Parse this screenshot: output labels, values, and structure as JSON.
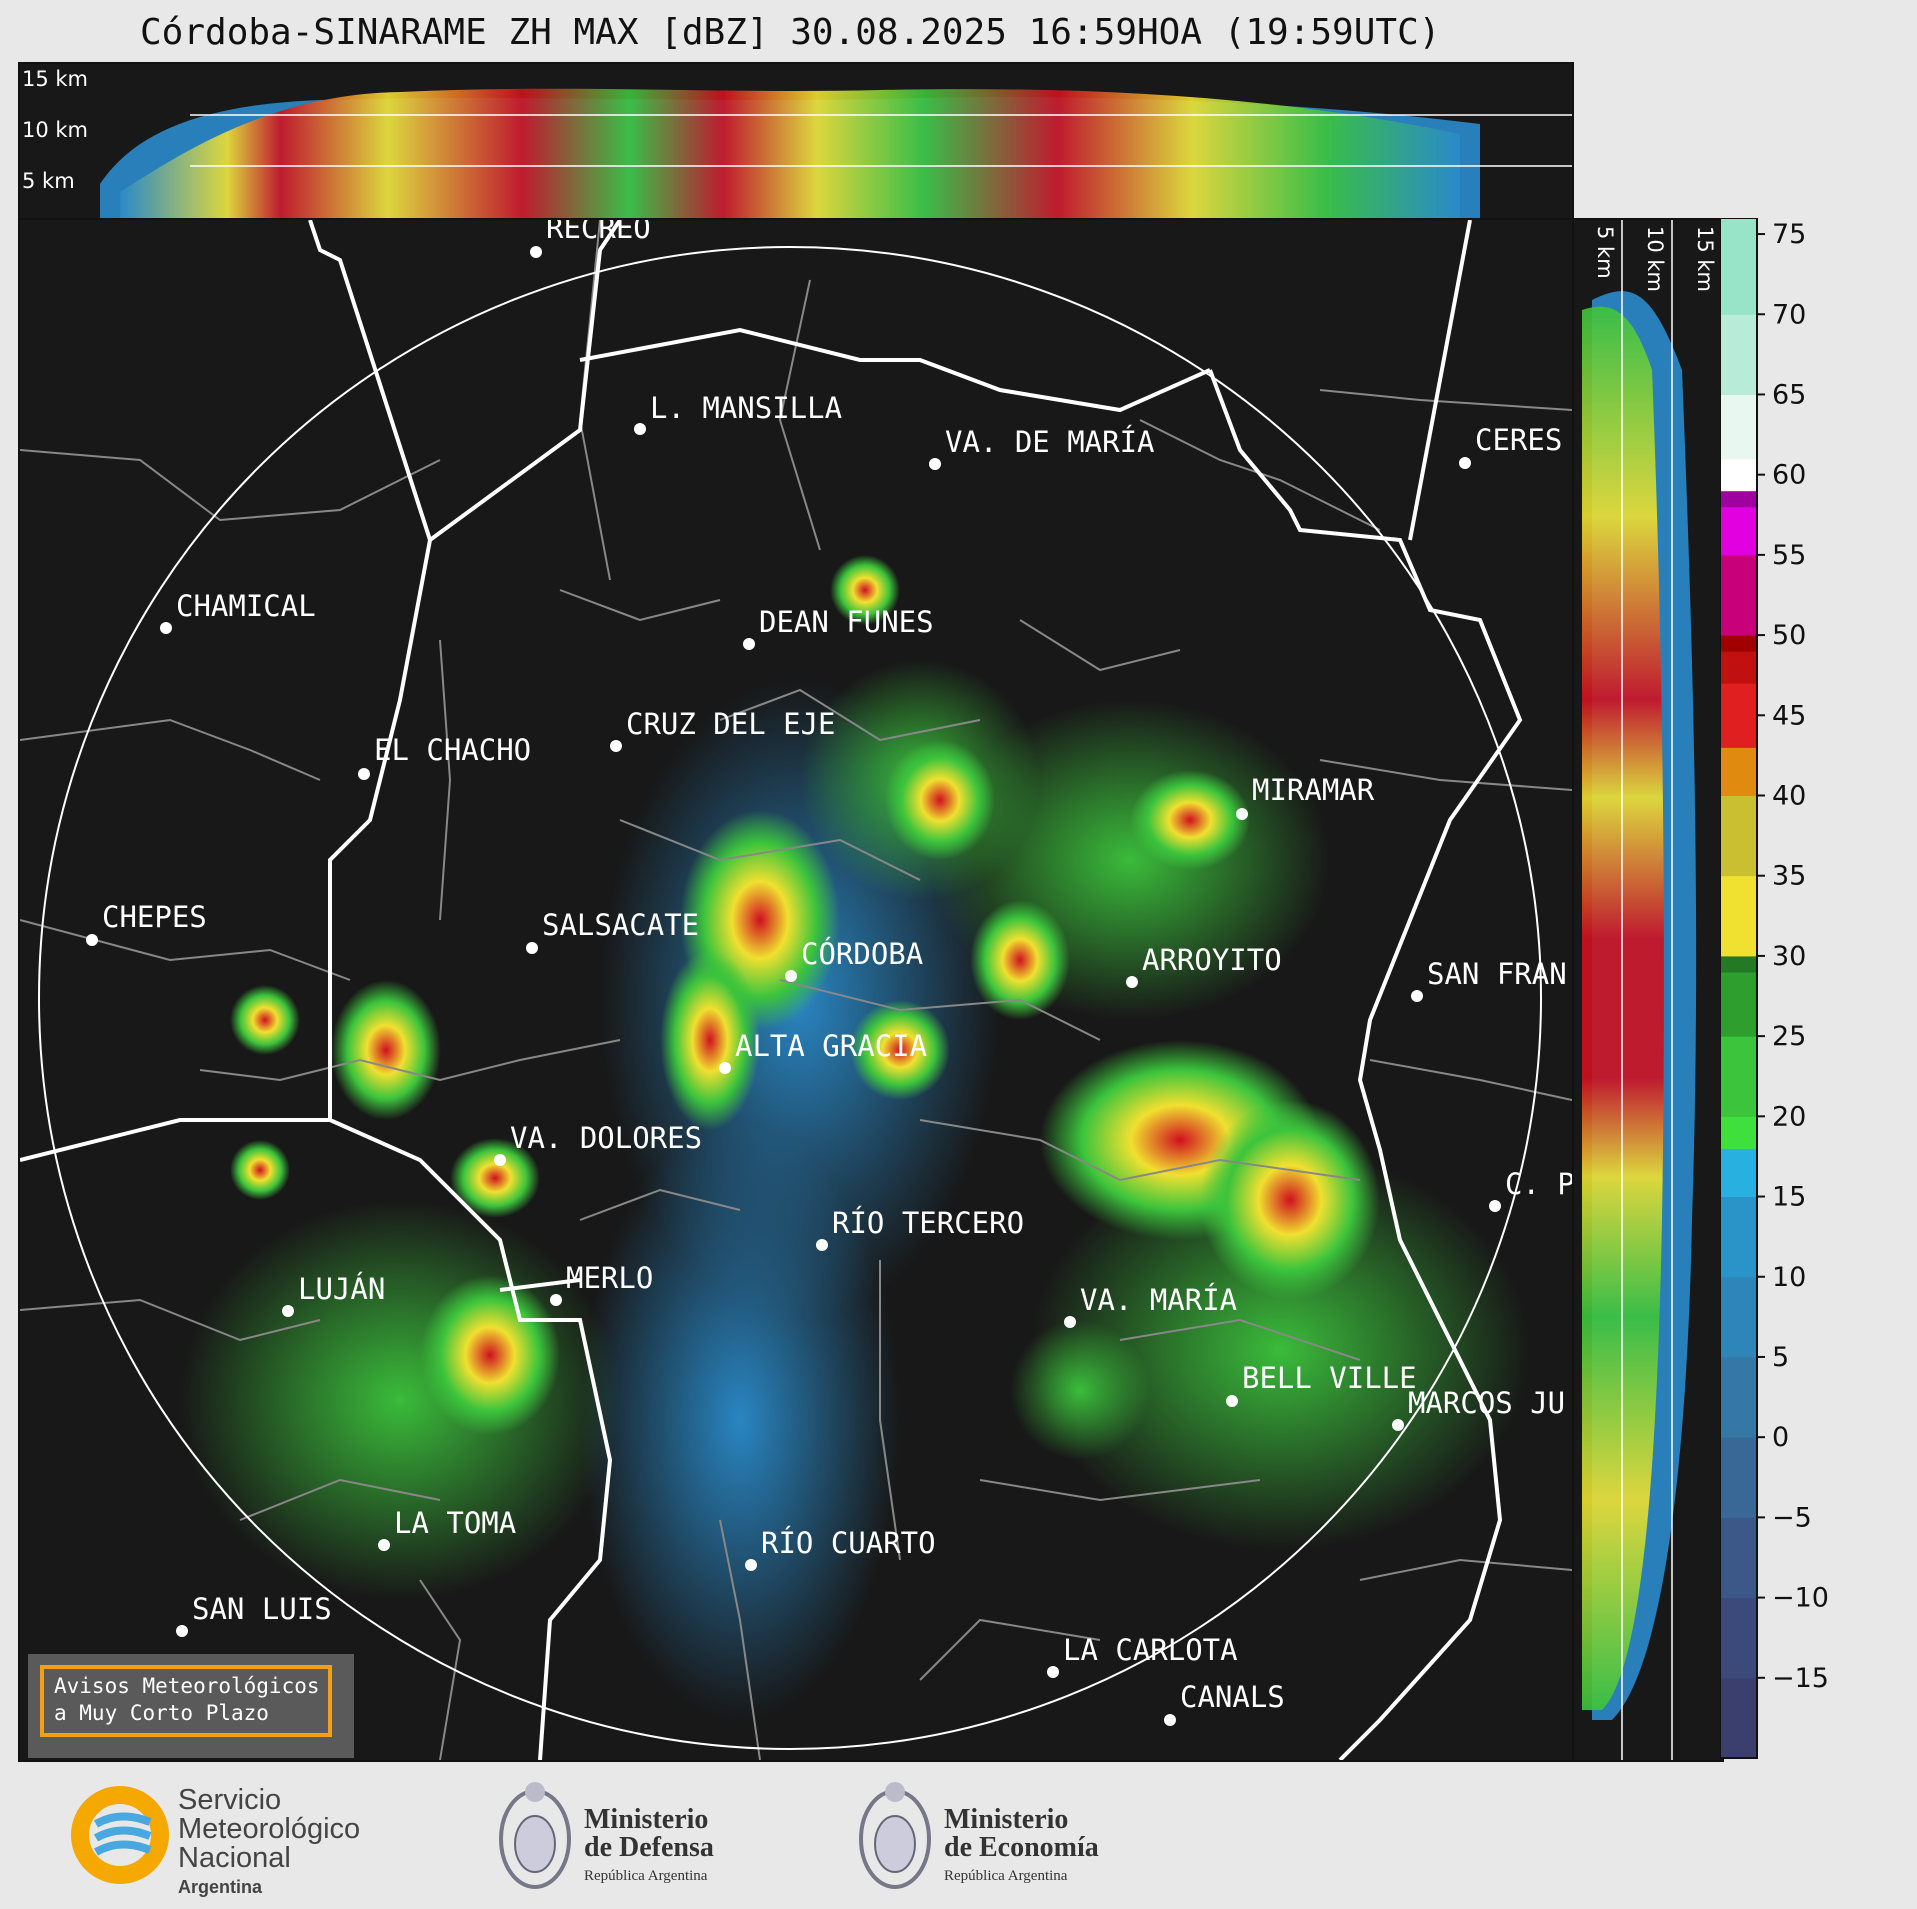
{
  "title": "Córdoba-SINARAME ZH MAX [dBZ] 30.08.2025 16:59HOA (19:59UTC)",
  "top_panel": {
    "km_labels": [
      "15 km",
      "10 km",
      "5 km"
    ]
  },
  "side_panel": {
    "km_labels": [
      "5 km",
      "10 km",
      "15 km"
    ]
  },
  "cities": [
    {
      "name": "RECREO"
    },
    {
      "name": "L. MANSILLA"
    },
    {
      "name": "VA. DE MARÍA"
    },
    {
      "name": "CERES"
    },
    {
      "name": "CHAMICAL"
    },
    {
      "name": "DEAN FUNES"
    },
    {
      "name": "CRUZ DEL EJE"
    },
    {
      "name": "EL CHACHO"
    },
    {
      "name": "MIRAMAR"
    },
    {
      "name": "CHEPES"
    },
    {
      "name": "SALSACATE"
    },
    {
      "name": "CÓRDOBA"
    },
    {
      "name": "ARROYITO"
    },
    {
      "name": "SAN FRAN"
    },
    {
      "name": "ALTA GRACIA"
    },
    {
      "name": "VA. DOLORES"
    },
    {
      "name": "C. P"
    },
    {
      "name": "RÍO TERCERO"
    },
    {
      "name": "LUJÁN"
    },
    {
      "name": "MERLO"
    },
    {
      "name": "VA. MARÍA"
    },
    {
      "name": "BELL VILLE"
    },
    {
      "name": "MARCOS JU"
    },
    {
      "name": "LA TOMA"
    },
    {
      "name": "RÍO CUARTO"
    },
    {
      "name": "SAN LUIS"
    },
    {
      "name": "LA CARLOTA"
    },
    {
      "name": "CANALS"
    }
  ],
  "colorbar": {
    "unit": "dBZ",
    "ticks": [
      "75",
      "70",
      "65",
      "60",
      "55",
      "50",
      "45",
      "40",
      "35",
      "30",
      "25",
      "20",
      "15",
      "10",
      "5",
      "0",
      "−5",
      "−10",
      "−15"
    ],
    "min": -20,
    "max": 76
  },
  "aviso": {
    "line1": "Avisos Meteorológicos",
    "line2": "a Muy Corto Plazo"
  },
  "logos": {
    "smn": {
      "line1": "Servicio",
      "line2": "Meteorológico",
      "line3": "Nacional",
      "line4": "Argentina"
    },
    "defensa": {
      "line1": "Ministerio",
      "line2": "de Defensa",
      "line3": "República Argentina"
    },
    "economia": {
      "line1": "Ministerio",
      "line2": "de Economía",
      "line3": "República Argentina"
    }
  },
  "colors": {
    "background": "#181818",
    "ring": "#ffffff",
    "border": "#ffffff",
    "aviso_border": "#f0a010"
  }
}
